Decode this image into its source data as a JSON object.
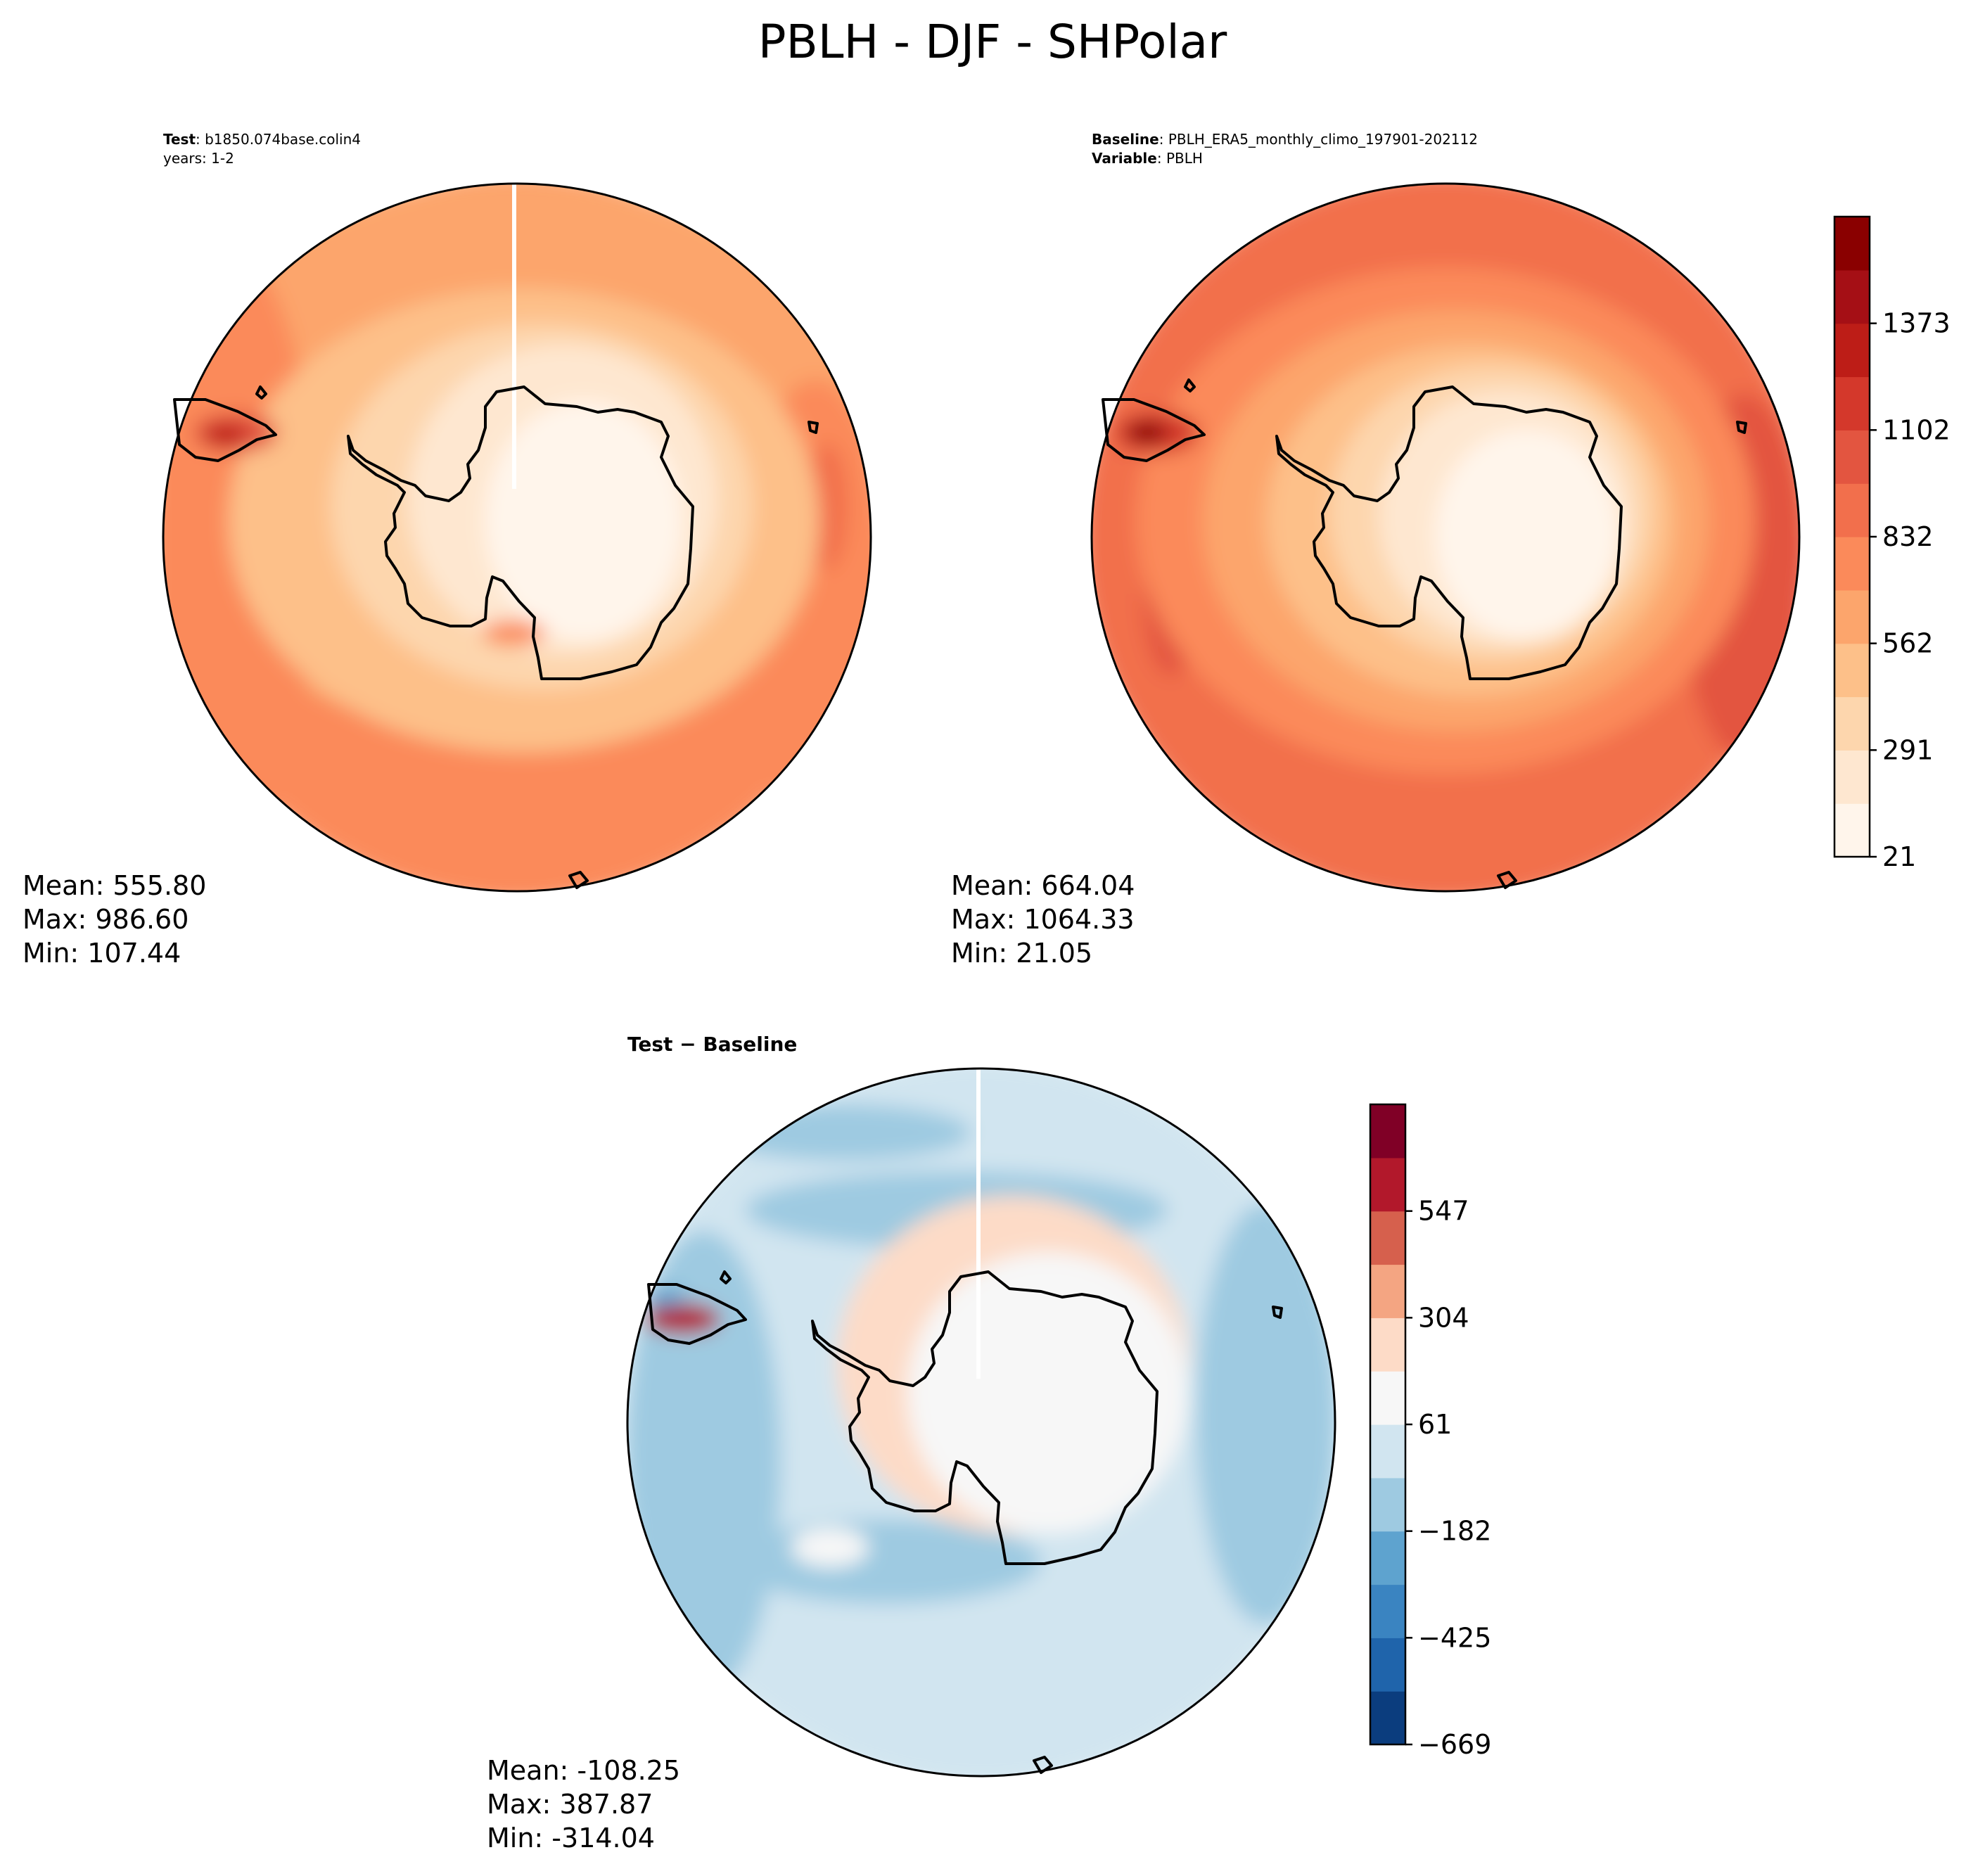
{
  "title": "PBLH - DJF - SHPolar",
  "colors": {
    "outline": "#000000",
    "coast": "#000000",
    "gap": "#ffffff",
    "reds": [
      "#fff5eb",
      "#fee7d0",
      "#fdd6ad",
      "#fdc089",
      "#fca56c",
      "#fb8a5a",
      "#f26f4c",
      "#e35540",
      "#d4382b",
      "#bd1d17",
      "#a50f15",
      "#8a0000"
    ],
    "div": [
      "#0b3d7e",
      "#1f64ab",
      "#3a84c1",
      "#5ea3cf",
      "#9ecae1",
      "#d1e5f0",
      "#f7f7f7",
      "#fddbc7",
      "#f4a582",
      "#d6604d",
      "#b2182b",
      "#800026"
    ]
  },
  "test_panel": {
    "label_bold": "Test",
    "label_text": ": b1850.074base.colin4",
    "line2": "years: 1-2",
    "stats": {
      "mean": "Mean: 555.80",
      "max": "Max: 986.60",
      "min": "Min: 107.44"
    }
  },
  "baseline_panel": {
    "label_bold": "Baseline",
    "label_text": ": PBLH_ERA5_monthly_climo_197901-202112",
    "line2_bold": "Variable",
    "line2_text": ": PBLH",
    "stats": {
      "mean": "Mean: 664.04",
      "max": "Max: 1064.33",
      "min": "Min: 21.05"
    }
  },
  "diff_panel": {
    "label": "Test − Baseline",
    "stats": {
      "mean": "Mean: -108.25",
      "max": "Max: 387.87",
      "min": "Min: -314.04"
    }
  },
  "colorbar_main": {
    "ticks": [
      "1373",
      "1102",
      "832",
      "562",
      "291",
      "21"
    ]
  },
  "colorbar_diff": {
    "ticks": [
      "547",
      "304",
      "61",
      "−182",
      "−425",
      "−669"
    ]
  }
}
